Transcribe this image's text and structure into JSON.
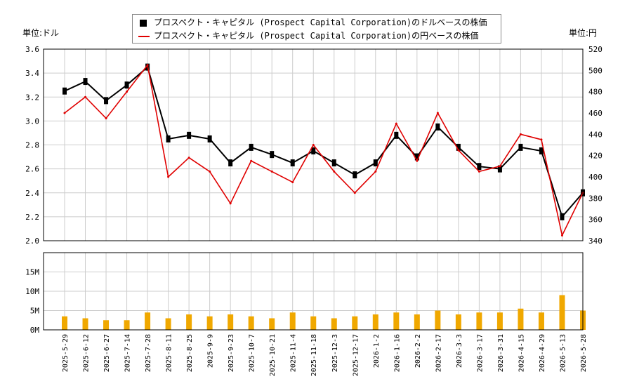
{
  "legend": {
    "usd_label": "プロスペクト・キャピタル (Prospect Capital Corporation)のドルベースの株価",
    "jpy_label": "プロスペクト・キャピタル (Prospect Capital Corporation)の円ベースの株価"
  },
  "units": {
    "left": "単位:ドル",
    "right": "単位:円"
  },
  "colors": {
    "usd": "#000000",
    "jpy": "#e00000",
    "volume": "#f0a800",
    "grid": "#cccccc"
  },
  "chart_data": [
    {
      "type": "line",
      "title": "",
      "ylabel_left": "単位:ドル",
      "ylabel_right": "単位:円",
      "ylim_left": [
        2.0,
        3.6
      ],
      "ylim_right": [
        340,
        520
      ],
      "yticks_left": [
        "2.0",
        "2.2",
        "2.4",
        "2.6",
        "2.8",
        "3.0",
        "3.2",
        "3.4",
        "3.6"
      ],
      "yticks_right": [
        "340",
        "360",
        "380",
        "400",
        "420",
        "440",
        "460",
        "480",
        "500",
        "520"
      ],
      "grid": true,
      "x": [
        "2025-5-29",
        "2025-6-12",
        "2025-6-27",
        "2025-7-14",
        "2025-7-28",
        "2025-8-11",
        "2025-8-25",
        "2025-9-9",
        "2025-9-23",
        "2025-10-7",
        "2025-10-21",
        "2025-11-4",
        "2025-11-18",
        "2025-12-3",
        "2025-12-17",
        "2026-1-2",
        "2026-1-16",
        "2026-2-2",
        "2026-2-17",
        "2026-3-3",
        "2026-3-17",
        "2026-3-31",
        "2026-4-15",
        "2026-4-29",
        "2026-5-13",
        "2026-5-28"
      ],
      "series": [
        {
          "name": "プロスペクト・キャピタル (Prospect Capital Corporation)のドルベースの株価",
          "values": [
            3.25,
            3.33,
            3.17,
            3.3,
            3.45,
            2.85,
            2.88,
            2.85,
            2.65,
            2.78,
            2.72,
            2.65,
            2.75,
            2.65,
            2.55,
            2.65,
            2.88,
            2.7,
            2.95,
            2.78,
            2.62,
            2.6,
            2.78,
            2.75,
            2.2,
            2.4
          ]
        },
        {
          "name": "プロスペクト・キャピタル (Prospect Capital Corporation)の円ベースの株価",
          "values": [
            460,
            475,
            455,
            480,
            505,
            400,
            418,
            405,
            375,
            415,
            405,
            395,
            430,
            405,
            385,
            405,
            450,
            415,
            460,
            425,
            405,
            410,
            440,
            435,
            345,
            385
          ]
        }
      ]
    },
    {
      "type": "bar",
      "title": "",
      "ylabel": "",
      "ylim": [
        0,
        20
      ],
      "yticks": [
        "0M",
        "5M",
        "10M",
        "15M"
      ],
      "x": [
        "2025-5-29",
        "2025-6-12",
        "2025-6-27",
        "2025-7-14",
        "2025-7-28",
        "2025-8-11",
        "2025-8-25",
        "2025-9-9",
        "2025-9-23",
        "2025-10-7",
        "2025-10-21",
        "2025-11-4",
        "2025-11-18",
        "2025-12-3",
        "2025-12-17",
        "2026-1-2",
        "2026-1-16",
        "2026-2-2",
        "2026-2-17",
        "2026-3-3",
        "2026-3-17",
        "2026-3-31",
        "2026-4-15",
        "2026-4-29",
        "2026-5-13",
        "2026-5-28"
      ],
      "values": [
        3.5,
        3.0,
        2.5,
        2.5,
        4.5,
        3.0,
        4.0,
        3.5,
        4.0,
        3.5,
        3.0,
        4.5,
        3.5,
        3.0,
        3.5,
        4.0,
        4.5,
        4.0,
        5.0,
        4.0,
        4.5,
        4.5,
        5.5,
        4.5,
        9.0,
        5.0
      ]
    }
  ]
}
